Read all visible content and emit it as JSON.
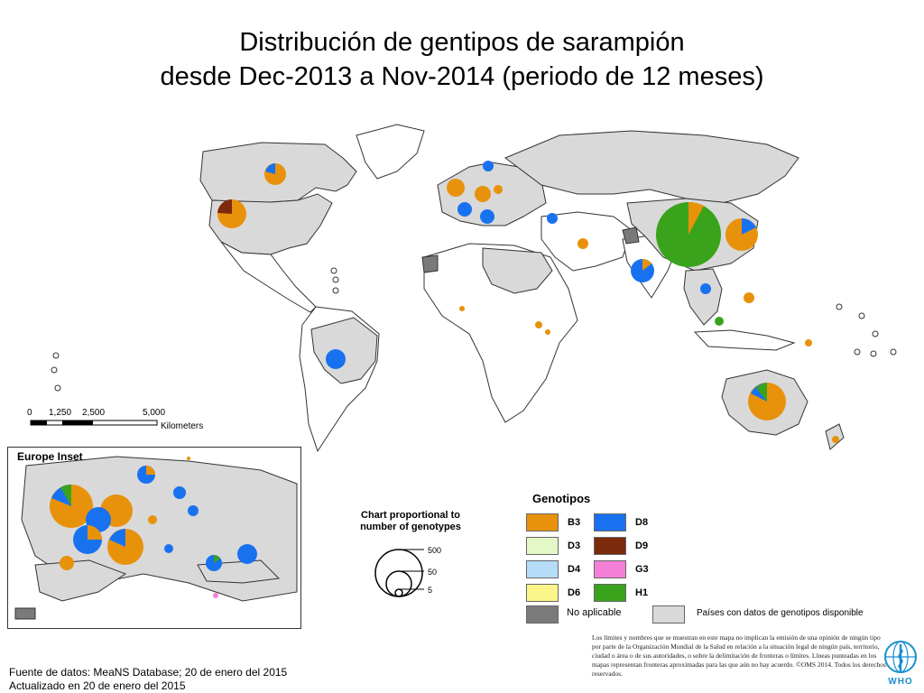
{
  "title": {
    "line1": "Distribución de gentipos de sarampión",
    "line2": "desde Dec-2013 a Nov-2014 (periodo de 12 meses)"
  },
  "scale": {
    "ticks": [
      "0",
      "1,250",
      "2,500",
      "5,000"
    ],
    "unit": "Kilometers"
  },
  "inset": {
    "title": "Europe Inset"
  },
  "proportional": {
    "title": "Chart proportional to number of genotypes",
    "sizes": [
      "500",
      "50",
      "5"
    ]
  },
  "legend": {
    "title": "Genotipos",
    "items": [
      {
        "label": "B3",
        "color": "#e8920c"
      },
      {
        "label": "D8",
        "color": "#1872f0"
      },
      {
        "label": "D3",
        "color": "#e4f7c6"
      },
      {
        "label": "D9",
        "color": "#7b2a0c"
      },
      {
        "label": "D4",
        "color": "#b6ddf7"
      },
      {
        "label": "G3",
        "color": "#f47fd7"
      },
      {
        "label": "D6",
        "color": "#fbf58a"
      },
      {
        "label": "H1",
        "color": "#3aa31c"
      }
    ],
    "not_applicable": {
      "label": "No aplicable",
      "color": "#7a7a7a"
    },
    "available": {
      "label": "Países con datos de genotipos disponible",
      "color": "#d9d9d9"
    }
  },
  "source": {
    "line1": "Fuente de datos: MeaNS Database; 20 de enero del 2015",
    "line2": "Actualizado en 20 de enero del 2015"
  },
  "disclaimer": "Los límites y nombres que se muestran en este mapa no implican la emisión de una opinión de ningún tipo por parte de la Organización Mundial de la Salud en relación a la situación legal de ningún país, territorio, ciudad o área o de sus autoridades, o sobre la delimitación de fronteras o límites. Líneas punteadas en los mapas representan fronteras aproximadas para las que aún no hay acuerdo. ©OMS 2014. Todos los derechos reservados.",
  "logo": "WHO",
  "colors": {
    "land_data": "#d9d9d9",
    "land_other": "#ffffff",
    "border": "#333333"
  }
}
